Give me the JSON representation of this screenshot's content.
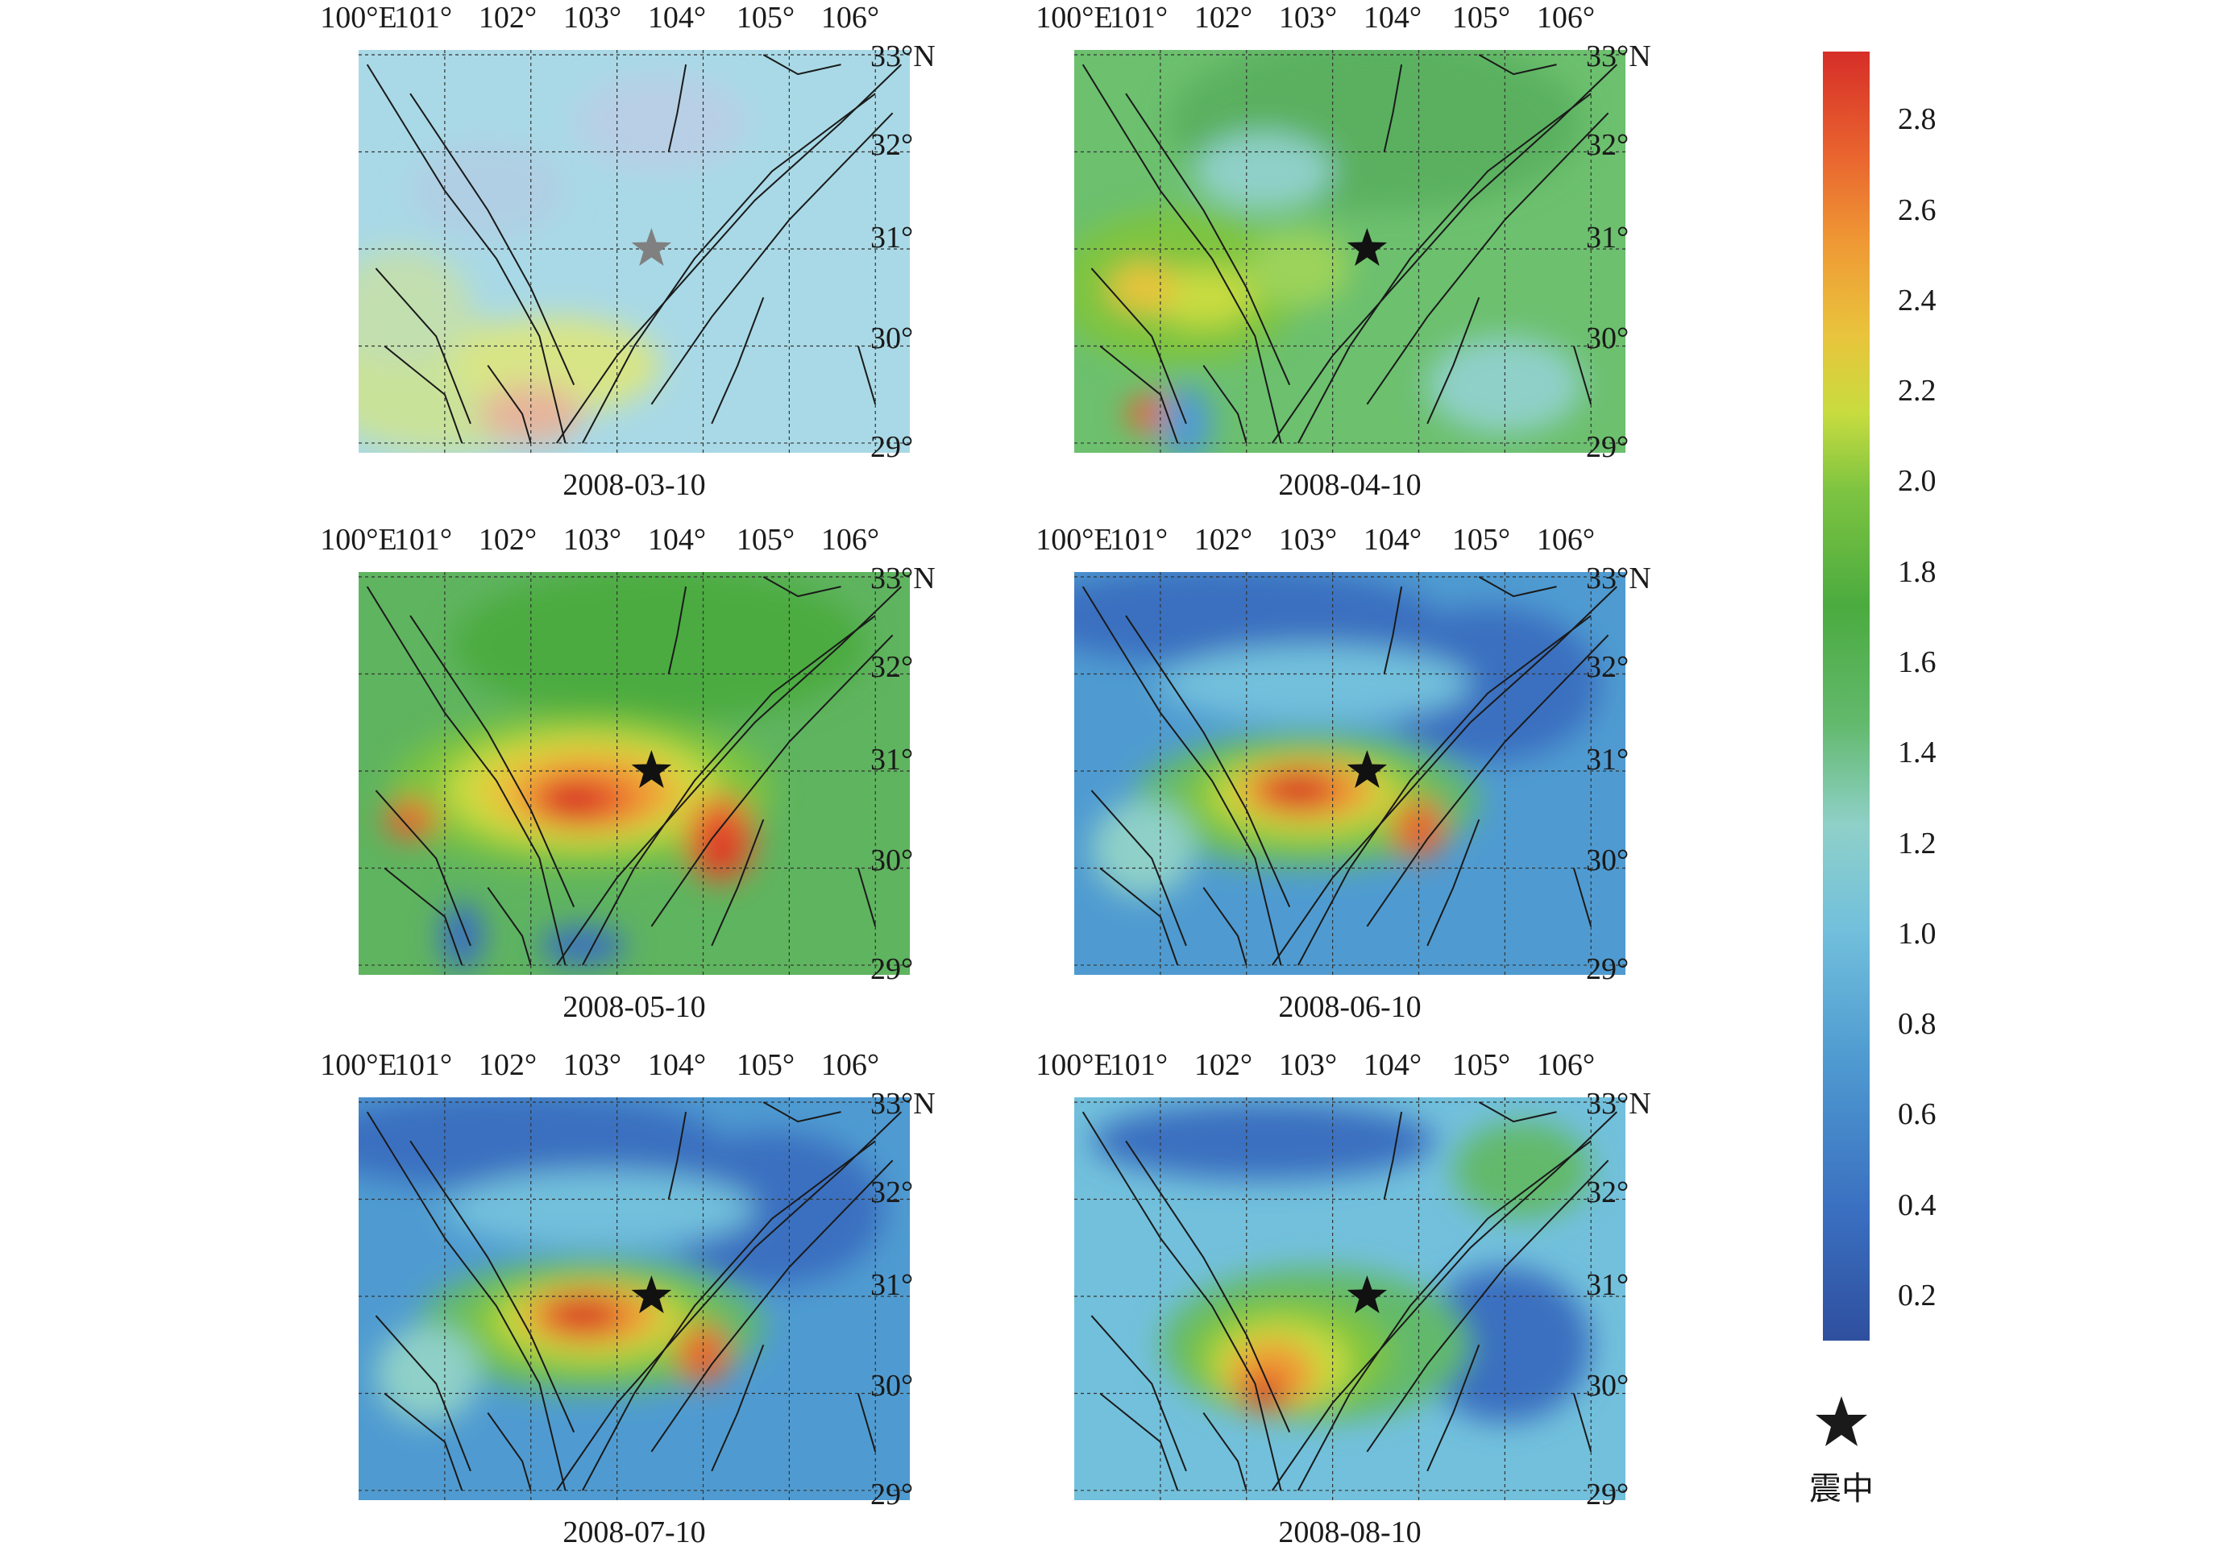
{
  "lon_labels": [
    "100°E",
    "101°",
    "102°",
    "103°",
    "104°",
    "105°",
    "106°"
  ],
  "lat_labels": [
    "33°N",
    "32°",
    "31°",
    "30°",
    "29°"
  ],
  "panels": [
    {
      "date": "2008-03-10",
      "style": "faded"
    },
    {
      "date": "2008-04-10",
      "style": "green"
    },
    {
      "date": "2008-05-10",
      "style": "hot"
    },
    {
      "date": "2008-06-10",
      "style": "blue-hot"
    },
    {
      "date": "2008-07-10",
      "style": "blue-hot"
    },
    {
      "date": "2008-08-10",
      "style": "blue-warm"
    }
  ],
  "epicenter": {
    "lon": 103.4,
    "lat": 31.0
  },
  "colorbar": {
    "min": 0.1,
    "max": 2.95,
    "ticks": [
      "2.8",
      "2.6",
      "2.4",
      "2.2",
      "2.0",
      "1.8",
      "1.6",
      "1.4",
      "1.2",
      "1.0",
      "0.8",
      "0.6",
      "0.4",
      "0.2"
    ],
    "colors": [
      "#2f4f9e",
      "#3a6fc0",
      "#4f9bd1",
      "#72c0dc",
      "#8fd0c8",
      "#62b96c",
      "#4bab3f",
      "#7ec441",
      "#c8dc3f",
      "#e9c43c",
      "#ef9a35",
      "#e9642f",
      "#d62e28"
    ]
  },
  "legend": {
    "symbol": "star-icon",
    "label": "震中"
  }
}
